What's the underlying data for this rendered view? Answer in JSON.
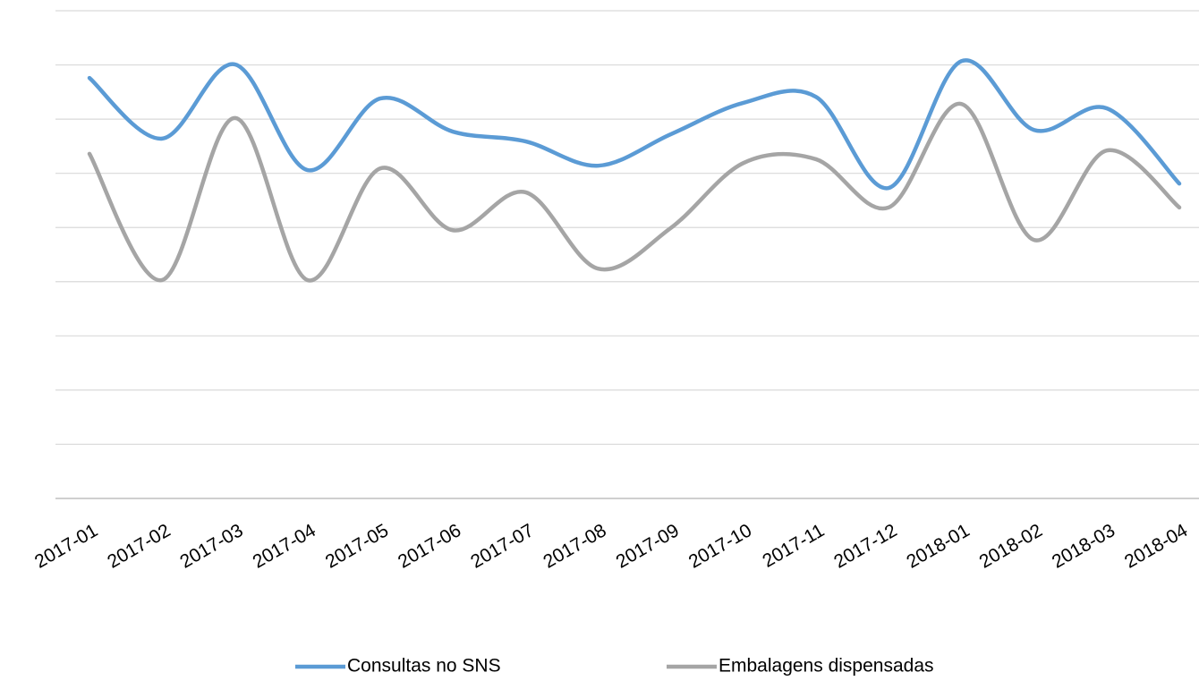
{
  "chart_data": {
    "type": "line",
    "categories": [
      "2017-01",
      "2017-02",
      "2017-03",
      "2017-04",
      "2017-05",
      "2017-06",
      "2017-07",
      "2017-08",
      "2017-09",
      "2017-10",
      "2017-11",
      "2017-12",
      "2018-01",
      "2018-02",
      "2018-03",
      "2018-04"
    ],
    "series": [
      {
        "name": "Consultas no SNS",
        "color": "#5b9bd5",
        "values": [
          7.76,
          6.64,
          8.01,
          6.06,
          7.38,
          6.77,
          6.59,
          6.14,
          6.72,
          7.3,
          7.41,
          5.73,
          8.07,
          6.8,
          7.2,
          5.81
        ]
      },
      {
        "name": "Embalagens dispensadas",
        "color": "#a5a5a5",
        "values": [
          6.36,
          4.03,
          7.02,
          4.03,
          6.09,
          4.95,
          5.65,
          4.24,
          4.99,
          6.19,
          6.26,
          5.37,
          7.28,
          4.77,
          6.42,
          5.37
        ]
      }
    ],
    "ylim": [
      0,
      9
    ],
    "yticks": [
      0,
      1,
      2,
      3,
      4,
      5,
      6,
      7,
      8,
      9
    ],
    "grid": true,
    "legend": "bottom",
    "smooth": true
  }
}
